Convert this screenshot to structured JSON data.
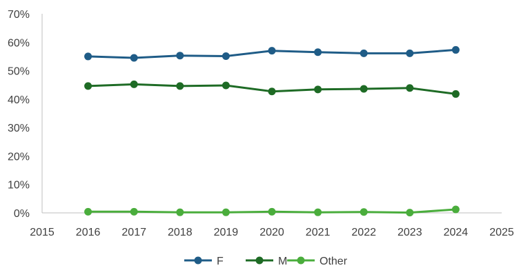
{
  "chart_data": {
    "type": "line",
    "title": "",
    "xlabel": "",
    "ylabel": "",
    "xlim": [
      2015,
      2025
    ],
    "ylim": [
      0,
      70
    ],
    "x_ticks": [
      "2015",
      "2016",
      "2017",
      "2018",
      "2019",
      "2020",
      "2021",
      "2022",
      "2023",
      "2024",
      "2025"
    ],
    "y_ticks": [
      "0%",
      "10%",
      "20%",
      "30%",
      "40%",
      "50%",
      "60%",
      "70%"
    ],
    "y_unit": "%",
    "grid": false,
    "legend_position": "bottom",
    "x": [
      2016,
      2017,
      2018,
      2019,
      2020,
      2021,
      2022,
      2023,
      2024
    ],
    "series": [
      {
        "name": "F",
        "color": "#1f5c87",
        "values": [
          55.0,
          54.5,
          55.3,
          55.1,
          57.0,
          56.5,
          56.1,
          56.1,
          57.3
        ]
      },
      {
        "name": "M",
        "color": "#1e6b25",
        "values": [
          44.6,
          45.2,
          44.6,
          44.8,
          42.7,
          43.4,
          43.6,
          43.9,
          41.8
        ]
      },
      {
        "name": "Other",
        "color": "#4aad3c",
        "values": [
          0.4,
          0.4,
          0.2,
          0.2,
          0.4,
          0.2,
          0.3,
          0.1,
          1.2
        ]
      }
    ]
  }
}
